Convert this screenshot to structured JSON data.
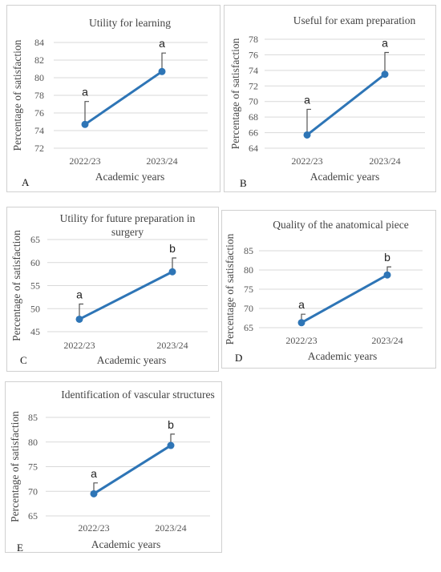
{
  "chart_data": [
    {
      "type": "line",
      "panel_label": "A",
      "title": "Utility for learning",
      "xlabel": "Academic years",
      "ylabel": "Percentage of satisfaction",
      "categories": [
        "2022/23",
        "2023/24"
      ],
      "values": [
        74.7,
        80.7
      ],
      "error_upper": [
        77.3,
        82.8
      ],
      "significance": [
        "a",
        "a"
      ],
      "ylim": [
        72,
        84
      ],
      "yticks": [
        72,
        74,
        76,
        78,
        80,
        82,
        84
      ],
      "grid": true
    },
    {
      "type": "line",
      "panel_label": "B",
      "title": "Useful for exam preparation",
      "xlabel": "Academic years",
      "ylabel": "Percentage of satisfaction",
      "categories": [
        "2022/23",
        "2023/24"
      ],
      "values": [
        65.7,
        73.5
      ],
      "error_upper": [
        69.0,
        76.3
      ],
      "significance": [
        "a",
        "a"
      ],
      "ylim": [
        64,
        78
      ],
      "yticks": [
        64,
        66,
        68,
        70,
        72,
        74,
        76,
        78
      ],
      "grid": true
    },
    {
      "type": "line",
      "panel_label": "C",
      "title": "Utility for future preparation in surgery",
      "xlabel": "Academic years",
      "ylabel": "Percentage of satisfaction",
      "categories": [
        "2022/23",
        "2023/24"
      ],
      "values": [
        47.7,
        58.0
      ],
      "error_upper": [
        51.0,
        61.0
      ],
      "significance": [
        "a",
        "b"
      ],
      "ylim": [
        45,
        65
      ],
      "yticks": [
        45,
        50,
        55,
        60,
        65
      ],
      "grid": true
    },
    {
      "type": "line",
      "panel_label": "D",
      "title": "Quality of the anatomical piece",
      "xlabel": "Academic years",
      "ylabel": "Percentage of satisfaction",
      "categories": [
        "2022/23",
        "2023/24"
      ],
      "values": [
        66.3,
        78.7
      ],
      "error_upper": [
        68.5,
        80.8
      ],
      "significance": [
        "a",
        "b"
      ],
      "ylim": [
        65,
        85
      ],
      "yticks": [
        65,
        70,
        75,
        80,
        85
      ],
      "grid": true
    },
    {
      "type": "line",
      "panel_label": "E",
      "title": "Identification of vascular structures",
      "xlabel": "Academic years",
      "ylabel": "Percentage of satisfaction",
      "categories": [
        "2022/23",
        "2023/24"
      ],
      "values": [
        69.5,
        79.3
      ],
      "error_upper": [
        71.7,
        81.6
      ],
      "significance": [
        "a",
        "b"
      ],
      "ylim": [
        65,
        85
      ],
      "yticks": [
        65,
        70,
        75,
        80,
        85
      ],
      "grid": true
    }
  ]
}
